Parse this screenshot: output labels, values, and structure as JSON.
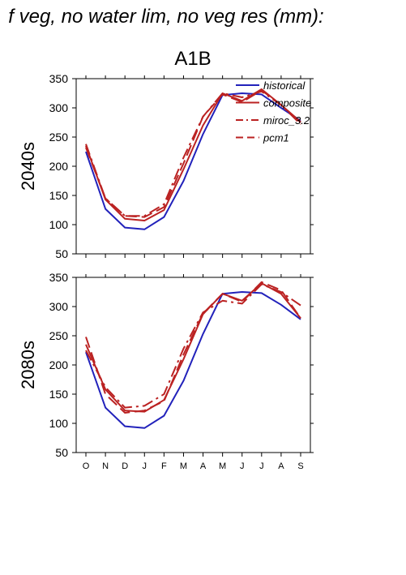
{
  "figure": {
    "title": "f veg, no water lim, no veg res (mm):",
    "subtitle": "A1B"
  },
  "chart_data": [
    {
      "type": "line",
      "panel_label": "2040s",
      "categories": [
        "O",
        "N",
        "D",
        "J",
        "F",
        "M",
        "A",
        "M",
        "J",
        "J",
        "A",
        "S"
      ],
      "ylim": [
        50,
        350
      ],
      "yticks": [
        50,
        100,
        150,
        200,
        250,
        300,
        350
      ],
      "grid": false,
      "show_xtick_labels": false,
      "legend": {
        "placement": "top-right"
      },
      "series": [
        {
          "name": "historical",
          "color": "#2222bb",
          "dash": "solid",
          "values": [
            225,
            127,
            95,
            92,
            113,
            175,
            255,
            322,
            325,
            323,
            300,
            278
          ]
        },
        {
          "name": "composite",
          "color": "#bb2222",
          "dash": "solid",
          "values": [
            235,
            143,
            110,
            107,
            125,
            195,
            270,
            325,
            312,
            332,
            305,
            276
          ]
        },
        {
          "name": "miroc_3.2",
          "color": "#bb2222",
          "dash": "dashdot",
          "values": [
            238,
            145,
            115,
            115,
            135,
            215,
            285,
            325,
            318,
            328,
            305,
            272
          ]
        },
        {
          "name": "pcm1",
          "color": "#bb2222",
          "dash": "dashed",
          "values": [
            232,
            145,
            115,
            113,
            130,
            205,
            285,
            323,
            310,
            330,
            305,
            275
          ]
        }
      ]
    },
    {
      "type": "line",
      "panel_label": "2080s",
      "categories": [
        "O",
        "N",
        "D",
        "J",
        "F",
        "M",
        "A",
        "M",
        "J",
        "J",
        "A",
        "S"
      ],
      "ylim": [
        50,
        350
      ],
      "yticks": [
        50,
        100,
        150,
        200,
        250,
        300,
        350
      ],
      "grid": false,
      "show_xtick_labels": true,
      "series": [
        {
          "name": "historical",
          "color": "#2222bb",
          "dash": "solid",
          "values": [
            222,
            127,
            95,
            92,
            113,
            173,
            253,
            322,
            325,
            323,
            303,
            278
          ]
        },
        {
          "name": "composite",
          "color": "#bb2222",
          "dash": "solid",
          "values": [
            235,
            158,
            122,
            120,
            140,
            210,
            287,
            322,
            310,
            340,
            322,
            280
          ]
        },
        {
          "name": "miroc_3.2",
          "color": "#bb2222",
          "dash": "dashdot",
          "values": [
            225,
            162,
            127,
            130,
            150,
            228,
            290,
            310,
            305,
            338,
            325,
            302
          ]
        },
        {
          "name": "pcm1",
          "color": "#bb2222",
          "dash": "dashed",
          "values": [
            248,
            150,
            118,
            122,
            138,
            218,
            288,
            322,
            308,
            342,
            328,
            280
          ]
        }
      ]
    }
  ]
}
